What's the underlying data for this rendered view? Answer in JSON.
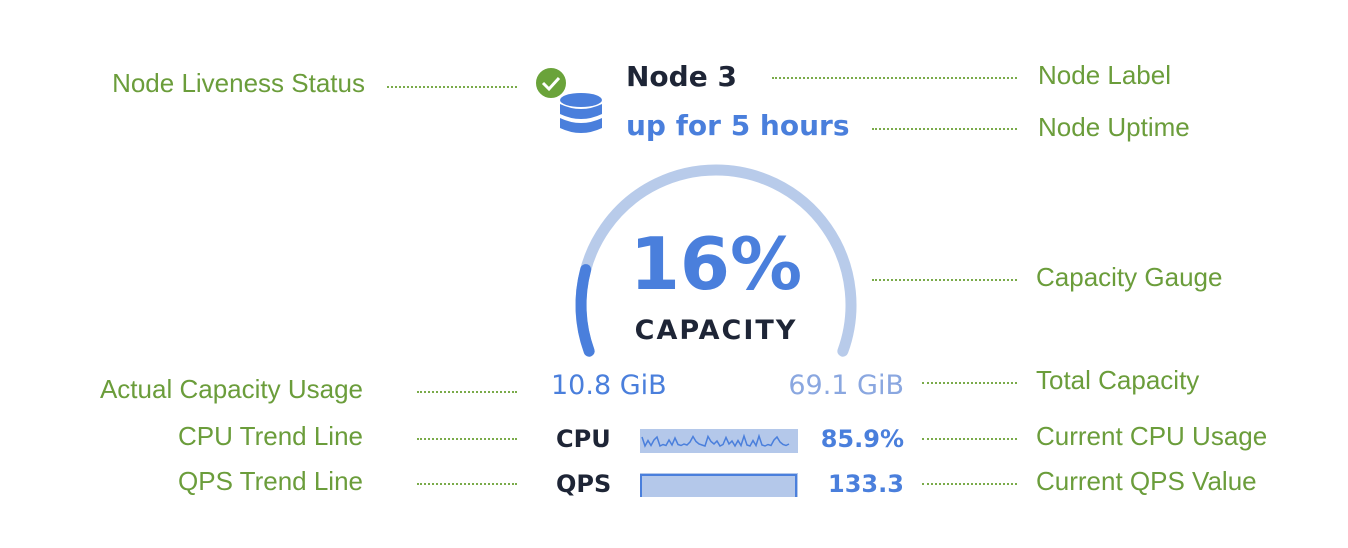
{
  "node": {
    "label": "Node 3",
    "uptime": "up for 5 hours",
    "status_icon": "check-circle-icon",
    "node_icon": "database-icon",
    "status_color": "#6aa33a"
  },
  "gauge": {
    "percent_text": "16%",
    "caption": "CAPACITY",
    "fraction": 0.16,
    "used": "10.8 GiB",
    "total": "69.1 GiB",
    "fill_color": "#4a7fdc",
    "track_color": "#b8cbea"
  },
  "metrics": [
    {
      "name": "CPU",
      "value": "85.9%"
    },
    {
      "name": "QPS",
      "value": "133.3"
    }
  ],
  "annotations": {
    "liveness": "Node Liveness Status",
    "node_label": "Node Label",
    "uptime": "Node Uptime",
    "gauge": "Capacity Gauge",
    "actual_usage": "Actual Capacity Usage",
    "total_capacity": "Total Capacity",
    "cpu_trend": "CPU Trend Line",
    "cpu_current": "Current CPU Usage",
    "qps_trend": "QPS Trend Line",
    "qps_current": "Current QPS Value"
  }
}
